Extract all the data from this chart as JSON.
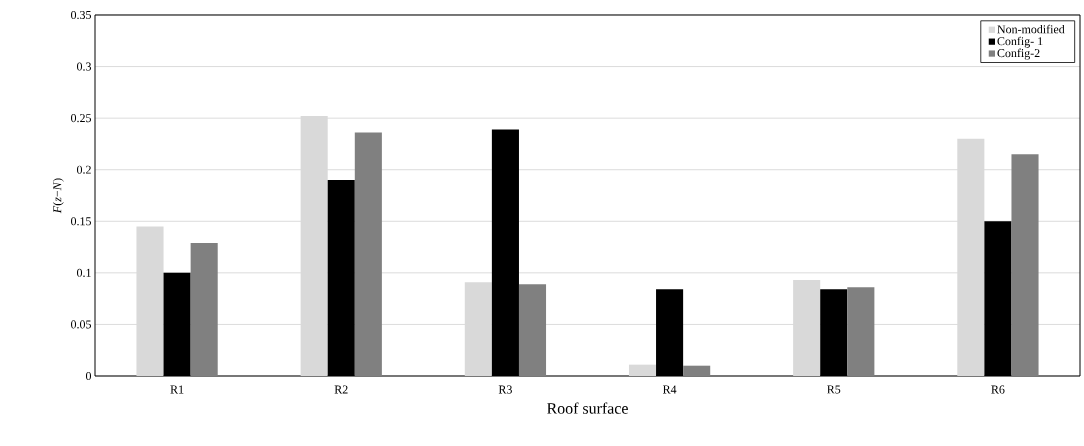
{
  "chart_data": {
    "type": "bar",
    "xlabel": "Roof surface",
    "ylabel": "*F*(*z*−*N*)",
    "categories": [
      "R1",
      "R2",
      "R3",
      "R4",
      "R5",
      "R6"
    ],
    "series": [
      {
        "name": "Non-modified",
        "color": "#d9d9d9",
        "values": [
          0.145,
          0.252,
          0.091,
          0.011,
          0.093,
          0.23
        ]
      },
      {
        "name": "Config- 1",
        "color": "#000000",
        "values": [
          0.1,
          0.19,
          0.239,
          0.084,
          0.084,
          0.15
        ]
      },
      {
        "name": "Config-2",
        "color": "#808080",
        "values": [
          0.129,
          0.236,
          0.089,
          0.01,
          0.086,
          0.215
        ]
      }
    ],
    "ylim": [
      0,
      0.35
    ],
    "yticks": [
      0,
      0.05,
      0.1,
      0.15,
      0.2,
      0.25,
      0.3,
      0.35
    ],
    "grid": "y",
    "legend": "top right"
  }
}
